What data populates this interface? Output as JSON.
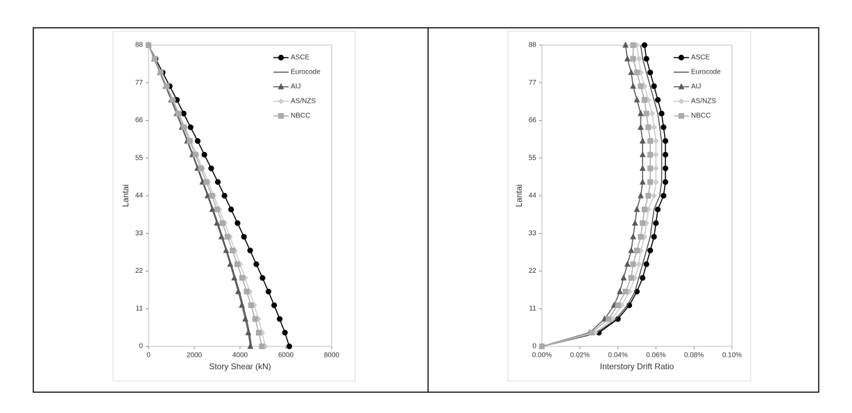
{
  "chart_data": [
    {
      "type": "scatter",
      "x_label": "Story Shear (kN)",
      "y_label": "Lantai",
      "xlim": [
        0,
        8000
      ],
      "xticks": [
        0,
        2000,
        4000,
        6000,
        8000
      ],
      "ylim": [
        0,
        88
      ],
      "yticks": [
        0,
        11,
        22,
        33,
        44,
        55,
        66,
        77,
        88
      ],
      "legend": "upper-right",
      "y": [
        0,
        4,
        8,
        12,
        16,
        20,
        24,
        28,
        32,
        36,
        40,
        44,
        48,
        52,
        56,
        60,
        64,
        68,
        72,
        76,
        80,
        84,
        88
      ],
      "series": [
        {
          "name": "ASCE",
          "color": "#000000",
          "marker": "circle",
          "x": [
            6150,
            5960,
            5730,
            5490,
            5240,
            4980,
            4710,
            4440,
            4170,
            3890,
            3610,
            3320,
            3030,
            2740,
            2440,
            2150,
            1840,
            1540,
            1240,
            930,
            620,
            310,
            0
          ]
        },
        {
          "name": "Eurocode",
          "color": "#555555",
          "marker": "none",
          "x": [
            4500,
            4410,
            4280,
            4130,
            3970,
            3790,
            3610,
            3420,
            3230,
            3030,
            2820,
            2610,
            2390,
            2170,
            1940,
            1710,
            1480,
            1240,
            1000,
            750,
            510,
            260,
            0
          ]
        },
        {
          "name": "AIJ",
          "color": "#5a5a5a",
          "marker": "triangle",
          "x": [
            4450,
            4360,
            4230,
            4080,
            3920,
            3750,
            3570,
            3390,
            3190,
            2990,
            2790,
            2580,
            2360,
            2140,
            1920,
            1690,
            1460,
            1230,
            990,
            750,
            500,
            250,
            0
          ]
        },
        {
          "name": "AS/NZS",
          "color": "#cccccc",
          "marker": "diamond",
          "x": [
            5100,
            4970,
            4800,
            4620,
            4420,
            4220,
            4000,
            3780,
            3560,
            3330,
            3090,
            2850,
            2610,
            2360,
            2110,
            1860,
            1600,
            1340,
            1080,
            810,
            540,
            280,
            0
          ]
        },
        {
          "name": "NBCC",
          "color": "#aaaaaa",
          "marker": "square",
          "x": [
            4950,
            4820,
            4660,
            4480,
            4290,
            4090,
            3880,
            3670,
            3450,
            3230,
            3000,
            2770,
            2530,
            2290,
            2050,
            1800,
            1550,
            1300,
            1050,
            790,
            530,
            270,
            0
          ]
        }
      ]
    },
    {
      "type": "scatter",
      "x_label": "Interstory Drift Ratio",
      "y_label": "Lantai",
      "xlim": [
        0,
        0.1
      ],
      "xticks": [
        {
          "value": 0,
          "label": "0.00%"
        },
        {
          "value": 0.02,
          "label": "0.02%"
        },
        {
          "value": 0.04,
          "label": "0.04%"
        },
        {
          "value": 0.06,
          "label": "0.06%"
        },
        {
          "value": 0.08,
          "label": "0.08%"
        },
        {
          "value": 0.1,
          "label": "0.10%"
        }
      ],
      "ylim": [
        0,
        88
      ],
      "yticks": [
        0,
        11,
        22,
        33,
        44,
        55,
        66,
        77,
        88
      ],
      "legend": "upper-right",
      "y": [
        0,
        4,
        8,
        12,
        16,
        20,
        24,
        28,
        32,
        36,
        40,
        44,
        48,
        52,
        56,
        60,
        64,
        68,
        72,
        76,
        80,
        84,
        88
      ],
      "series": [
        {
          "name": "ASCE",
          "color": "#000000",
          "marker": "circle",
          "x": [
            0,
            0.03,
            0.04,
            0.046,
            0.05,
            0.053,
            0.055,
            0.057,
            0.059,
            0.06,
            0.061,
            0.064,
            0.065,
            0.065,
            0.065,
            0.065,
            0.064,
            0.063,
            0.061,
            0.059,
            0.057,
            0.055,
            0.054
          ]
        },
        {
          "name": "Eurocode",
          "color": "#555555",
          "marker": "none",
          "x": [
            0,
            0.029,
            0.039,
            0.045,
            0.049,
            0.051,
            0.053,
            0.055,
            0.057,
            0.058,
            0.059,
            0.062,
            0.063,
            0.063,
            0.063,
            0.063,
            0.062,
            0.061,
            0.059,
            0.057,
            0.055,
            0.053,
            0.052
          ]
        },
        {
          "name": "AIJ",
          "color": "#5a5a5a",
          "marker": "triangle",
          "x": [
            0,
            0.025,
            0.033,
            0.038,
            0.041,
            0.043,
            0.045,
            0.047,
            0.048,
            0.049,
            0.05,
            0.052,
            0.053,
            0.053,
            0.053,
            0.053,
            0.052,
            0.052,
            0.05,
            0.048,
            0.047,
            0.045,
            0.044
          ]
        },
        {
          "name": "AS/NZS",
          "color": "#cccccc",
          "marker": "diamond",
          "x": [
            0,
            0.028,
            0.037,
            0.042,
            0.046,
            0.049,
            0.051,
            0.052,
            0.054,
            0.055,
            0.056,
            0.059,
            0.06,
            0.06,
            0.06,
            0.06,
            0.059,
            0.058,
            0.056,
            0.054,
            0.052,
            0.051,
            0.05
          ]
        },
        {
          "name": "NBCC",
          "color": "#aaaaaa",
          "marker": "square",
          "x": [
            0,
            0.026,
            0.035,
            0.04,
            0.044,
            0.047,
            0.048,
            0.05,
            0.052,
            0.053,
            0.054,
            0.056,
            0.057,
            0.057,
            0.057,
            0.057,
            0.056,
            0.055,
            0.054,
            0.052,
            0.05,
            0.048,
            0.048
          ]
        }
      ]
    }
  ]
}
